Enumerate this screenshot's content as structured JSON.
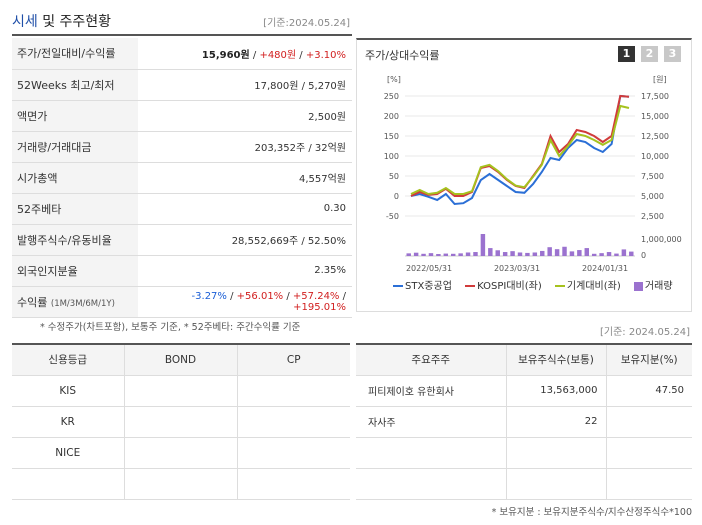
{
  "header": {
    "title_highlight": "시세",
    "title_rest": " 및 주주현황",
    "base_date": "[기준:2024.05.24]"
  },
  "info": {
    "price": {
      "label": "주가/전일대비/수익률",
      "value": "15,960원",
      "change": "+480원",
      "rate": "+3.10%"
    },
    "weeks52": {
      "label": "52Weeks 최고/최저",
      "value": "17,800원 / 5,270원"
    },
    "face": {
      "label": "액면가",
      "value": "2,500원"
    },
    "volume": {
      "label": "거래량/거래대금",
      "value": "203,352주 / 32억원"
    },
    "mcap": {
      "label": "시가총액",
      "value": "4,557억원"
    },
    "beta": {
      "label": "52주베타",
      "value": "0.30"
    },
    "shares": {
      "label": "발행주식수/유동비율",
      "value": "28,552,669주 / 52.50%"
    },
    "foreign": {
      "label": "외국인지분율",
      "value": "2.35%"
    },
    "returns": {
      "label": "수익률",
      "sub": "(1M/3M/6M/1Y)",
      "r1": "-3.27%",
      "r2": "+56.01%",
      "r3": "+57.24%",
      "r4": "+195.01%"
    }
  },
  "note1": "* 수정주가(차트포함), 보통주 기준, * 52주베타: 주간수익률 기준",
  "chart_panel": {
    "title": "주가/상대수익률",
    "tabs": [
      "1",
      "2",
      "3"
    ]
  },
  "chart_data": {
    "type": "line",
    "left_unit": "[%]",
    "right_unit": "[원]",
    "left_ticks": [
      "250",
      "200",
      "150",
      "100",
      "50",
      "0",
      "-50"
    ],
    "right_ticks": [
      "17,500",
      "15,000",
      "12,500",
      "10,000",
      "7,500",
      "5,000",
      "2,500"
    ],
    "volume_tick": "1,000,000",
    "volume_zero": "0",
    "x_labels": [
      "2022/05/31",
      "2023/03/31",
      "2024/01/31"
    ],
    "ylim": [
      -50,
      250
    ],
    "series": [
      {
        "name": "STX중공업",
        "color": "#2b6fd6",
        "values": [
          0,
          5,
          -2,
          -10,
          5,
          -20,
          -18,
          -5,
          40,
          55,
          40,
          25,
          10,
          8,
          30,
          60,
          95,
          90,
          120,
          140,
          135,
          120,
          110,
          130,
          250,
          248
        ]
      },
      {
        "name": "KOSPI대비(좌)",
        "color": "#d13b3b",
        "values": [
          0,
          10,
          3,
          5,
          18,
          0,
          0,
          10,
          70,
          75,
          60,
          40,
          25,
          20,
          50,
          80,
          150,
          110,
          130,
          165,
          160,
          150,
          135,
          150,
          250,
          248
        ]
      },
      {
        "name": "기계대비(좌)",
        "color": "#a6c21e",
        "values": [
          5,
          15,
          5,
          8,
          20,
          5,
          5,
          12,
          72,
          78,
          62,
          42,
          26,
          22,
          48,
          78,
          140,
          100,
          125,
          155,
          150,
          140,
          128,
          140,
          225,
          220
        ]
      }
    ],
    "volume_name": "거래량",
    "volume_color": "#9b72cf",
    "volume": [
      120000,
      150000,
      100000,
      130000,
      90000,
      110000,
      100000,
      120000,
      160000,
      180000,
      1000000,
      360000,
      260000,
      180000,
      220000,
      160000,
      140000,
      160000,
      230000,
      400000,
      310000,
      420000,
      210000,
      270000,
      360000,
      100000,
      130000,
      180000,
      110000,
      300000,
      200000
    ]
  },
  "base_date2": "[기준: 2024.05.24]",
  "credit": {
    "headers": [
      "신용등급",
      "BOND",
      "CP"
    ],
    "rows": [
      "KIS",
      "KR",
      "NICE",
      ""
    ]
  },
  "holders": {
    "headers": [
      "주요주주",
      "보유주식수(보통)",
      "보유지분(%)"
    ],
    "rows": [
      {
        "name": "피티제이호 유한회사",
        "shares": "13,563,000",
        "pct": "47.50"
      },
      {
        "name": "자사주",
        "shares": "22",
        "pct": ""
      },
      {
        "name": "",
        "shares": "",
        "pct": ""
      },
      {
        "name": "",
        "shares": "",
        "pct": ""
      }
    ]
  },
  "note2": "* 보유지분 : 보유지분주식수/지수산정주식수*100"
}
